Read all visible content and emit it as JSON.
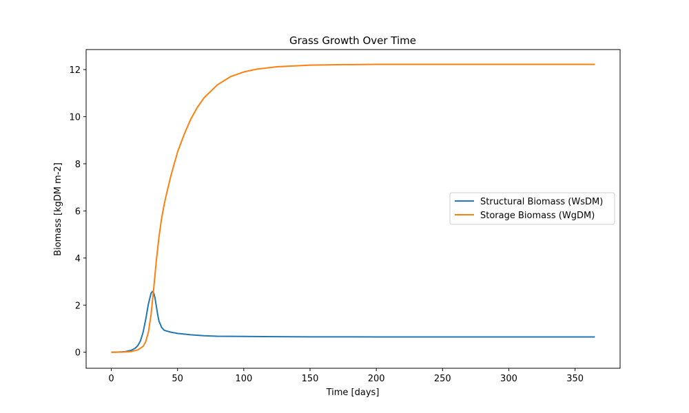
{
  "chart_data": {
    "type": "line",
    "title": "Grass Growth Over Time",
    "xlabel": "Time [days]",
    "ylabel": "Biomass [kgDM m-2]",
    "xlim": [
      -19,
      384
    ],
    "ylim": [
      -0.68,
      12.85
    ],
    "xticks": [
      0,
      50,
      100,
      150,
      200,
      250,
      300,
      350
    ],
    "yticks": [
      0,
      2,
      4,
      6,
      8,
      10,
      12
    ],
    "grid": false,
    "legend_position": "center right",
    "series": [
      {
        "name": "Structural Biomass (WsDM)",
        "color": "#1f77b4",
        "x": [
          0,
          5,
          10,
          15,
          18,
          20,
          22,
          24,
          26,
          28,
          30,
          31,
          32,
          33,
          34,
          35,
          36,
          38,
          40,
          45,
          50,
          60,
          70,
          80,
          100,
          125,
          150,
          200,
          250,
          300,
          365
        ],
        "y": [
          0.0,
          0.005,
          0.02,
          0.08,
          0.17,
          0.28,
          0.48,
          0.85,
          1.4,
          2.05,
          2.5,
          2.58,
          2.52,
          2.3,
          1.95,
          1.6,
          1.32,
          1.05,
          0.93,
          0.85,
          0.8,
          0.74,
          0.7,
          0.68,
          0.67,
          0.66,
          0.655,
          0.65,
          0.65,
          0.65,
          0.65
        ]
      },
      {
        "name": "Storage Biomass (WgDM)",
        "color": "#ff7f0e",
        "x": [
          0,
          5,
          10,
          15,
          20,
          24,
          26,
          28,
          30,
          32,
          34,
          36,
          38,
          40,
          42,
          45,
          50,
          55,
          60,
          65,
          70,
          80,
          90,
          100,
          110,
          125,
          150,
          175,
          200,
          250,
          300,
          365
        ],
        "y": [
          0.0,
          0.002,
          0.01,
          0.03,
          0.1,
          0.25,
          0.45,
          0.85,
          1.6,
          2.7,
          3.9,
          4.9,
          5.7,
          6.3,
          6.8,
          7.5,
          8.5,
          9.25,
          9.9,
          10.4,
          10.8,
          11.35,
          11.7,
          11.9,
          12.02,
          12.12,
          12.19,
          12.21,
          12.22,
          12.22,
          12.22,
          12.22
        ]
      }
    ]
  }
}
